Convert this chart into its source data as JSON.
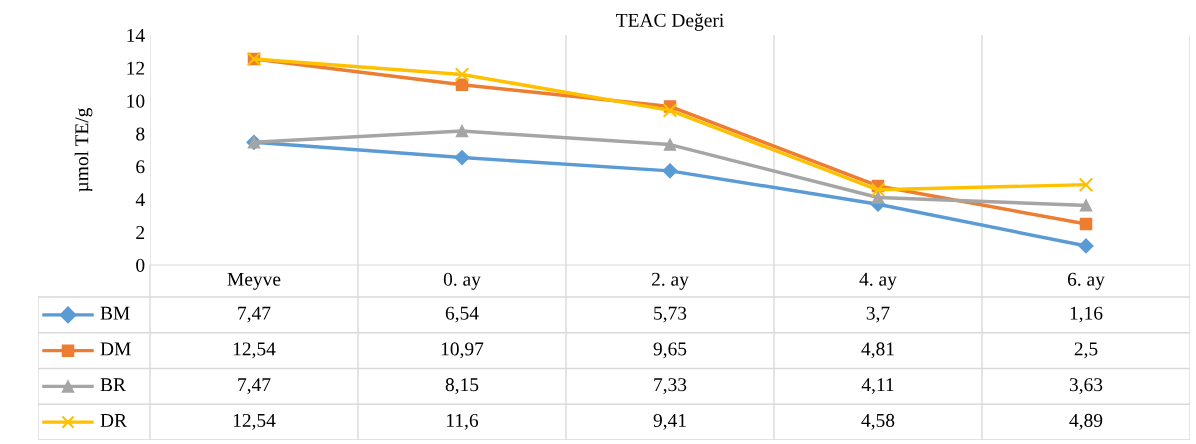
{
  "chart_data": {
    "type": "line",
    "title": "TEAC Değeri",
    "ylabel": "µmol TE/g",
    "categories": [
      "Meyve",
      "0. ay",
      "2. ay",
      "4. ay",
      "6. ay"
    ],
    "ylim": [
      0,
      14
    ],
    "yticks": [
      0,
      2,
      4,
      6,
      8,
      10,
      12,
      14
    ],
    "grid": "x",
    "legend": "bottom",
    "line_style": "solid",
    "series": [
      {
        "name": "BM",
        "color": "#5b9bd5",
        "marker": "diamond",
        "values": [
          7.47,
          6.54,
          5.73,
          3.7,
          1.16
        ],
        "value_labels": [
          "7,47",
          "6,54",
          "5,73",
          "3,7",
          "1,16"
        ]
      },
      {
        "name": "DM",
        "color": "#ed7d31",
        "marker": "square",
        "values": [
          12.54,
          10.97,
          9.65,
          4.81,
          2.5
        ],
        "value_labels": [
          "12,54",
          "10,97",
          "9,65",
          "4,81",
          "2,5"
        ]
      },
      {
        "name": "BR",
        "color": "#a5a5a5",
        "marker": "triangle",
        "values": [
          7.47,
          8.15,
          7.33,
          4.11,
          3.63
        ],
        "value_labels": [
          "7,47",
          "8,15",
          "7,33",
          "4,11",
          "3,63"
        ]
      },
      {
        "name": "DR",
        "color": "#ffc000",
        "marker": "cross",
        "values": [
          12.54,
          11.6,
          9.41,
          4.58,
          4.89
        ],
        "value_labels": [
          "12,54",
          "11,6",
          "9,41",
          "4,58",
          "4,89"
        ]
      }
    ]
  }
}
